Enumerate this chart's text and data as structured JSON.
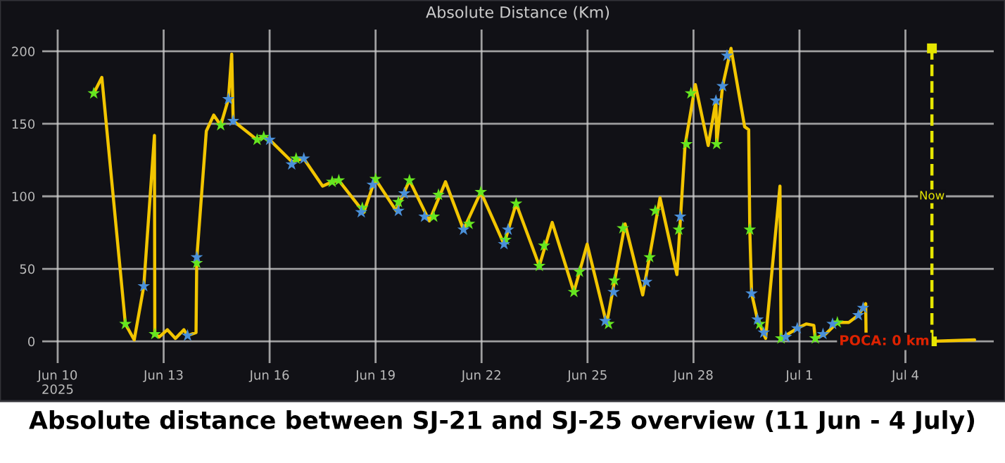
{
  "chart_data": {
    "type": "line",
    "title": "Absolute Distance (Km)",
    "xlim": [
      "2025-06-09T13:30",
      "2025-07-06T12:00"
    ],
    "xticks": [
      {
        "value": "2025-06-10",
        "label": "Jun 10\n2025"
      },
      {
        "value": "2025-06-13",
        "label": "Jun 13"
      },
      {
        "value": "2025-06-16",
        "label": "Jun 16"
      },
      {
        "value": "2025-06-19",
        "label": "Jun 19"
      },
      {
        "value": "2025-06-22",
        "label": "Jun 22"
      },
      {
        "value": "2025-06-25",
        "label": "Jun 25"
      },
      {
        "value": "2025-06-28",
        "label": "Jun 28"
      },
      {
        "value": "2025-07-01",
        "label": "Jul 1"
      },
      {
        "value": "2025-07-04",
        "label": "Jul 4"
      }
    ],
    "ylim": [
      -15,
      215
    ],
    "yticks": [
      0,
      50,
      100,
      150,
      200
    ],
    "grid": true,
    "legend": false,
    "series": [
      {
        "color": "#f2c500",
        "marker": "none",
        "line_style": "solid",
        "x": [
          "2025-06-11T00:30",
          "2025-06-11T06:00",
          "2025-06-11T22:00",
          "2025-06-12T04:00",
          "2025-06-12T10:30",
          "2025-06-12T17:45",
          "2025-06-12T18:00",
          "2025-06-12T21:00",
          "2025-06-13T02:30",
          "2025-06-13T08:00",
          "2025-06-13T13:45",
          "2025-06-13T16:15",
          "2025-06-13T22:00",
          "2025-06-13T22:30",
          "2025-06-14T05:00",
          "2025-06-14T10:00",
          "2025-06-14T14:45",
          "2025-06-14T20:00",
          "2025-06-14T22:15",
          "2025-06-14T23:15",
          "2025-06-15T15:30",
          "2025-06-15T20:00",
          "2025-06-16T00:00",
          "2025-06-16T15:00",
          "2025-06-16T23:15",
          "2025-06-17T12:00",
          "2025-06-17T18:30",
          "2025-06-17T23:00",
          "2025-06-18T16:00",
          "2025-06-18T23:45",
          "2025-06-19T14:00",
          "2025-06-19T23:00",
          "2025-06-20T12:30",
          "2025-06-20T23:30",
          "2025-06-21T11:45",
          "2025-06-21T23:30",
          "2025-06-22T15:15",
          "2025-06-22T23:30",
          "2025-06-23T15:15",
          "2025-06-24T00:00",
          "2025-06-24T14:45",
          "2025-06-24T23:45",
          "2025-06-25T13:00",
          "2025-06-26T01:30",
          "2025-06-26T13:30",
          "2025-06-27T01:15",
          "2025-06-27T12:45",
          "2025-06-27T18:15",
          "2025-06-28T01:15",
          "2025-06-28T10:00",
          "2025-06-28T15:15",
          "2025-06-28T15:45",
          "2025-06-28T19:45",
          "2025-06-29T01:30",
          "2025-06-29T10:45",
          "2025-06-29T13:30",
          "2025-06-29T14:15",
          "2025-06-29T15:30",
          "2025-06-29T19:30",
          "2025-06-30T01:00",
          "2025-06-30T10:45",
          "2025-06-30T11:30",
          "2025-06-30T22:30",
          "2025-07-01T04:45",
          "2025-07-01T09:45",
          "2025-07-01T10:45",
          "2025-07-01T17:45",
          "2025-07-02T01:45",
          "2025-07-02T09:30",
          "2025-07-02T16:00",
          "2025-07-02T21:00",
          "2025-07-02T21:15"
        ],
        "values": [
          171,
          182,
          12,
          1,
          38,
          142,
          5,
          3,
          8,
          2,
          8,
          4,
          6,
          57,
          145,
          156,
          149,
          167,
          198,
          152,
          139,
          141,
          139,
          124,
          126,
          107,
          110,
          111,
          89,
          112,
          90,
          111,
          83,
          110,
          77,
          103,
          67,
          95,
          52,
          82,
          34,
          67,
          12,
          81,
          32,
          99,
          46,
          135,
          177,
          135,
          166,
          136,
          176,
          202,
          148,
          146,
          77,
          33,
          15,
          2,
          107,
          2,
          9,
          12,
          11,
          2,
          5,
          13,
          13,
          18,
          26,
          5
        ]
      },
      {
        "color": "#f2c500",
        "marker": "none",
        "line_style": "solid",
        "x": [
          "2025-07-04T18:30",
          "2025-07-05T23:00"
        ],
        "values": [
          0,
          1
        ]
      },
      {
        "color": "#e6e600",
        "marker": "square",
        "line_style": "dashed",
        "x": [
          "2025-07-04T18:00",
          "2025-07-04T18:00"
        ],
        "values": [
          0,
          202
        ]
      },
      {
        "type": "scatter",
        "color": "#66e620",
        "marker": "star",
        "x": [
          "2025-06-11T00:30",
          "2025-06-11T22:00",
          "2025-06-12T18:00",
          "2025-06-13T22:30",
          "2025-06-14T14:45",
          "2025-06-15T15:30",
          "2025-06-15T20:00",
          "2025-06-16T18:00",
          "2025-06-17T18:30",
          "2025-06-17T23:00",
          "2025-06-18T15:00",
          "2025-06-19T00:00",
          "2025-06-19T15:30",
          "2025-06-19T23:00",
          "2025-06-20T15:30",
          "2025-06-20T18:45",
          "2025-06-21T15:30",
          "2025-06-21T23:30",
          "2025-06-22T16:15",
          "2025-06-22T23:30",
          "2025-06-23T15:15",
          "2025-06-23T18:30",
          "2025-06-24T14:45",
          "2025-06-24T18:30",
          "2025-06-25T14:15",
          "2025-06-25T18:15",
          "2025-06-26T00:00",
          "2025-06-26T18:15",
          "2025-06-26T22:00",
          "2025-06-27T14:00",
          "2025-06-27T19:15",
          "2025-06-27T22:15",
          "2025-06-28T15:45",
          "2025-06-29T14:15",
          "2025-06-29T21:00",
          "2025-06-30T11:30",
          "2025-07-01T10:45",
          "2025-07-02T01:45"
        ],
        "values": [
          171,
          12,
          5,
          54,
          149,
          139,
          141,
          126,
          110,
          111,
          92,
          112,
          96,
          111,
          86,
          101,
          81,
          103,
          70,
          95,
          52,
          66,
          34,
          48,
          12,
          42,
          78,
          58,
          90,
          77,
          136,
          171,
          136,
          77,
          12,
          2,
          2,
          13
        ]
      },
      {
        "type": "scatter",
        "color": "#4a90d9",
        "marker": "star",
        "x": [
          "2025-06-12T10:30",
          "2025-06-13T16:15",
          "2025-06-13T22:30",
          "2025-06-14T20:00",
          "2025-06-14T23:15",
          "2025-06-16T00:00",
          "2025-06-16T15:00",
          "2025-06-16T23:15",
          "2025-06-18T14:15",
          "2025-06-18T22:00",
          "2025-06-19T15:30",
          "2025-06-19T19:30",
          "2025-06-20T09:15",
          "2025-06-21T11:45",
          "2025-06-22T15:15",
          "2025-06-22T18:00",
          "2025-06-25T12:00",
          "2025-06-25T17:45",
          "2025-06-26T16:00",
          "2025-06-27T15:00",
          "2025-06-28T15:15",
          "2025-06-28T19:45",
          "2025-06-28T22:45",
          "2025-06-29T15:30",
          "2025-06-29T19:30",
          "2025-06-29T23:45",
          "2025-06-30T14:45",
          "2025-06-30T22:30",
          "2025-07-01T16:00",
          "2025-07-01T22:30",
          "2025-07-02T16:00",
          "2025-07-02T19:15"
        ],
        "values": [
          38,
          4,
          58,
          167,
          152,
          139,
          122,
          126,
          89,
          108,
          90,
          102,
          86,
          77,
          67,
          77,
          14,
          34,
          41,
          86,
          166,
          176,
          197,
          33,
          15,
          6,
          3,
          9,
          5,
          12,
          18,
          23
        ]
      }
    ],
    "annotations": [
      {
        "text": "Now",
        "x": "2025-07-04T18:00",
        "y": 100
      },
      "POCA: 0 km",
      "Absolute distance between SJ-21 and SJ-25 overview (11 Jun - 4 July)"
    ]
  }
}
